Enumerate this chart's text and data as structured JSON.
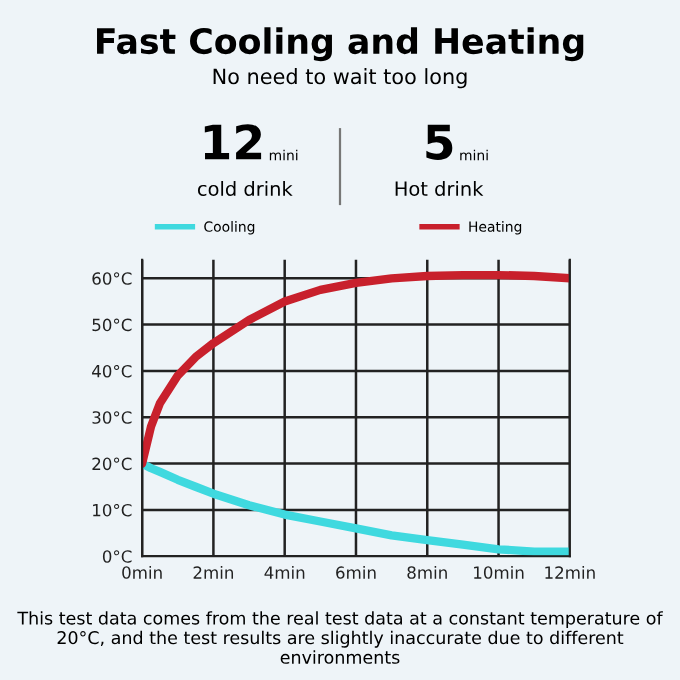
{
  "chart_data": {
    "type": "line",
    "title": "Fast Cooling and Heating",
    "subtitle": "No need to wait too long",
    "x": [
      0,
      0.25,
      0.5,
      1,
      1.5,
      2,
      3,
      4,
      5,
      6,
      7,
      8,
      9,
      10,
      11,
      12
    ],
    "series": [
      {
        "name": "Cooling",
        "color": "#3fd9df",
        "values": [
          20,
          19,
          18.2,
          16.5,
          15,
          13.5,
          11,
          9,
          7.5,
          6,
          4.5,
          3.5,
          2.5,
          1.5,
          1,
          1
        ]
      },
      {
        "name": "Heating",
        "color": "#c8202c",
        "values": [
          20,
          28,
          33,
          39,
          43,
          46,
          51,
          55,
          57.5,
          59,
          60,
          60.5,
          60.7,
          60.7,
          60.5,
          60
        ]
      }
    ],
    "xlim": [
      0,
      12
    ],
    "ylim": [
      0,
      64
    ],
    "xticks": [
      {
        "value": 0,
        "label": "0min"
      },
      {
        "value": 2,
        "label": "2min"
      },
      {
        "value": 4,
        "label": "4min"
      },
      {
        "value": 6,
        "label": "6min"
      },
      {
        "value": 8,
        "label": "8min"
      },
      {
        "value": 10,
        "label": "10min"
      },
      {
        "value": 12,
        "label": "12min"
      }
    ],
    "yticks": [
      {
        "value": 0,
        "label": "0°C"
      },
      {
        "value": 10,
        "label": "10°C"
      },
      {
        "value": 20,
        "label": "20°C"
      },
      {
        "value": 30,
        "label": "30°C"
      },
      {
        "value": 40,
        "label": "40°C"
      },
      {
        "value": 50,
        "label": "50°C"
      },
      {
        "value": 60,
        "label": "60°C"
      }
    ],
    "grid": true,
    "legend": "top",
    "marker": "none",
    "line_style": "solid",
    "annotations": [
      "12",
      "mini",
      "cold drink",
      "5",
      "mini",
      "Hot drink",
      "This test data comes from the real test data at a constant temperature of 20°C, and the test results are slightly inaccurate due to different environments"
    ]
  }
}
